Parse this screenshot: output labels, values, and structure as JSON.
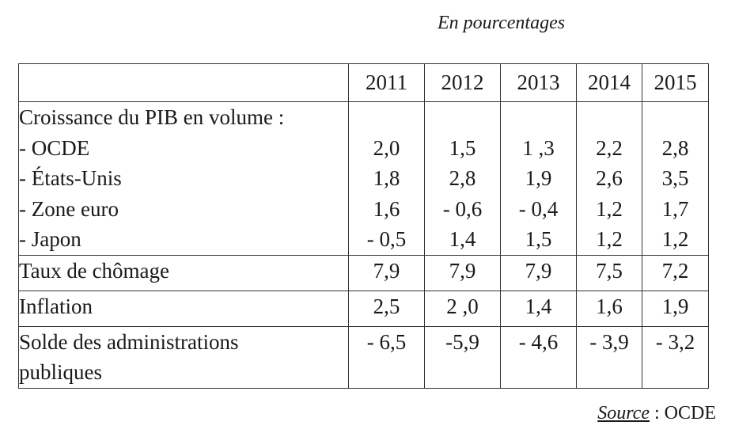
{
  "unit_note": "En pourcentages",
  "years": [
    "2011",
    "2012",
    "2013",
    "2014",
    "2015"
  ],
  "pib": {
    "heading": "Croissance du PIB en volume :",
    "rows": [
      {
        "label": "- OCDE",
        "values": [
          "2,0",
          "1,5",
          "1 ,3",
          "2,2",
          "2,8"
        ]
      },
      {
        "label": "- États-Unis",
        "values": [
          "1,8",
          "2,8",
          "1,9",
          "2,6",
          "3,5"
        ]
      },
      {
        "label": "- Zone euro",
        "values": [
          "1,6",
          "- 0,6",
          "- 0,4",
          "1,2",
          "1,7"
        ]
      },
      {
        "label": "- Japon",
        "values": [
          "- 0,5",
          "1,4",
          "1,5",
          "1,2",
          "1,2"
        ]
      }
    ]
  },
  "chomage": {
    "label": "Taux de chômage",
    "values": [
      "7,9",
      "7,9",
      "7,9",
      "7,5",
      "7,2"
    ]
  },
  "inflation": {
    "label": "Inflation",
    "values": [
      "2,5",
      "2 ,0",
      "1,4",
      "1,6",
      "1,9"
    ]
  },
  "solde": {
    "label_line1": "Solde des administrations",
    "label_line2": "publiques",
    "values": [
      "- 6,5",
      "-5,9",
      "- 4,6",
      "- 3,9",
      "- 3,2"
    ]
  },
  "source": {
    "word": "Source",
    "rest": " : OCDE"
  }
}
